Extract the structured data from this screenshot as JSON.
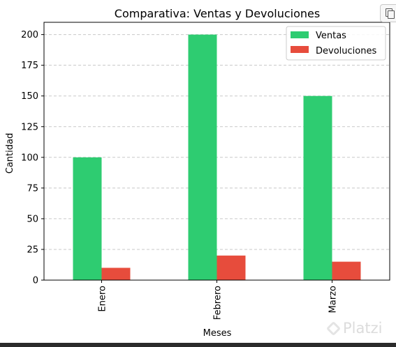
{
  "chart_data": {
    "type": "bar",
    "title": "Comparativa: Ventas y Devoluciones",
    "xlabel": "Meses",
    "ylabel": "Cantidad",
    "categories": [
      "Enero",
      "Febrero",
      "Marzo"
    ],
    "series": [
      {
        "name": "Ventas",
        "values": [
          100,
          200,
          150
        ],
        "color": "#2ecc71"
      },
      {
        "name": "Devoluciones",
        "values": [
          10,
          20,
          15
        ],
        "color": "#e74c3c"
      }
    ],
    "ylim": [
      0,
      210
    ],
    "yticks": [
      0,
      25,
      50,
      75,
      100,
      125,
      150,
      175,
      200
    ],
    "grid": "horizontal-dashed",
    "legend": "top-right"
  },
  "toolbar": {
    "copy_icon": "copy-icon"
  },
  "watermark": {
    "text": "Platzi",
    "color": "#dcdcdc"
  }
}
